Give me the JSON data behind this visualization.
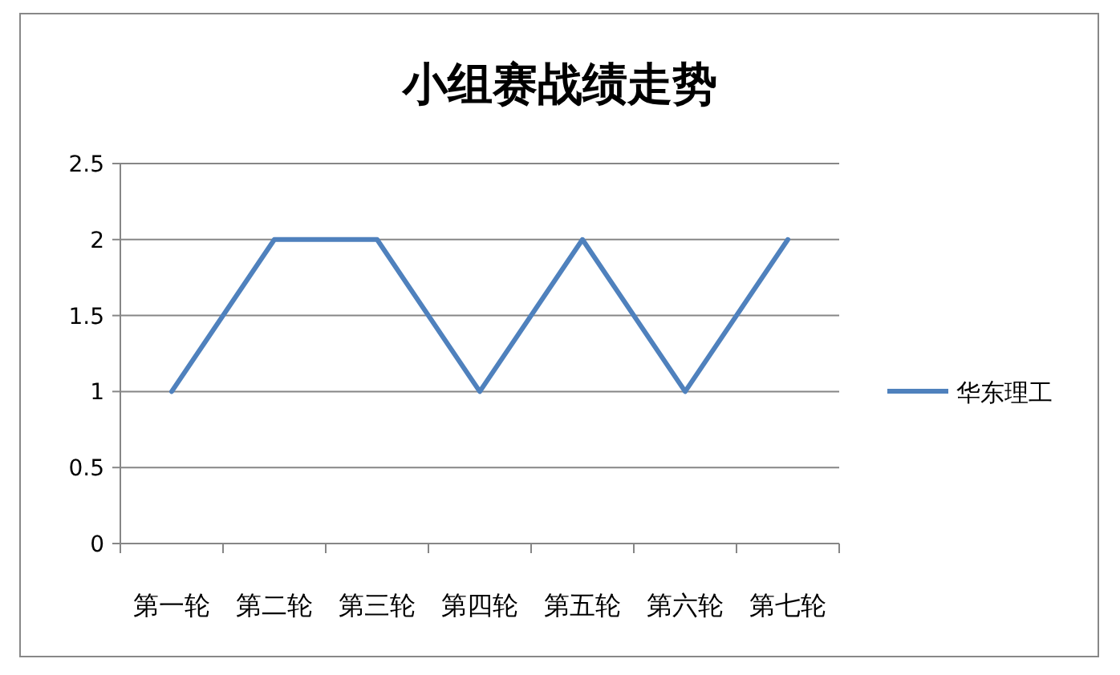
{
  "chart_data": {
    "type": "line",
    "title": "小组赛战绩走势",
    "categories": [
      "第一轮",
      "第二轮",
      "第三轮",
      "第四轮",
      "第五轮",
      "第六轮",
      "第七轮"
    ],
    "series": [
      {
        "name": "华东理工",
        "color": "#4f81bd",
        "values": [
          1,
          2,
          2,
          1,
          2,
          1,
          2
        ]
      }
    ],
    "ylim": [
      0,
      2.5
    ],
    "yticks": [
      0,
      0.5,
      1,
      1.5,
      2,
      2.5
    ],
    "grid": "y",
    "legend": "right",
    "marker": "none",
    "line_style": "solid"
  }
}
